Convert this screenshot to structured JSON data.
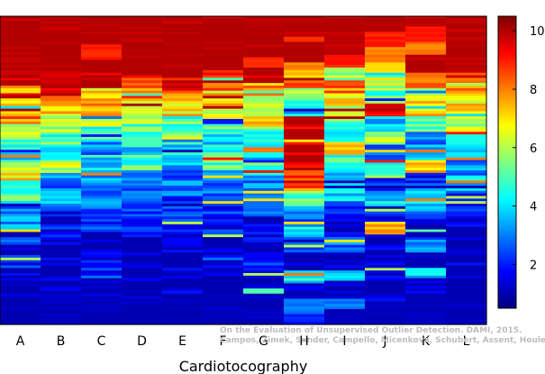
{
  "chart_data": {
    "type": "heatmap",
    "title": "",
    "xlabel": "Cardiotocography",
    "ylabel": "",
    "categories": [
      "A",
      "B",
      "C",
      "D",
      "E",
      "F",
      "G",
      "H",
      "I",
      "J",
      "K",
      "L"
    ],
    "colorbar": {
      "range": [
        0.5,
        10.5
      ],
      "ticks": [
        2,
        4,
        6,
        8,
        10
      ],
      "colormap": [
        "#00007f",
        "#0000ff",
        "#007fff",
        "#00ffff",
        "#7fff7f",
        "#ffff00",
        "#ff7f00",
        "#ff0000",
        "#7f0000"
      ]
    },
    "grid": false,
    "column_profiles": [
      [
        [
          0.0,
          10
        ],
        [
          0.22,
          8
        ],
        [
          0.25,
          10
        ],
        [
          0.27,
          7
        ],
        [
          0.3,
          8
        ],
        [
          0.35,
          6
        ],
        [
          0.4,
          5
        ],
        [
          0.44,
          4
        ],
        [
          0.47,
          6
        ],
        [
          0.51,
          7
        ],
        [
          0.53,
          4
        ],
        [
          0.57,
          5
        ],
        [
          0.6,
          3
        ],
        [
          0.7,
          2
        ],
        [
          0.75,
          1
        ],
        [
          0.78,
          2
        ],
        [
          0.82,
          1
        ],
        [
          1.0,
          1
        ]
      ],
      [
        [
          0.0,
          10
        ],
        [
          0.26,
          8
        ],
        [
          0.29,
          7
        ],
        [
          0.32,
          6
        ],
        [
          0.37,
          5
        ],
        [
          0.42,
          4
        ],
        [
          0.47,
          6
        ],
        [
          0.51,
          3
        ],
        [
          0.58,
          4
        ],
        [
          0.62,
          2
        ],
        [
          0.72,
          1
        ],
        [
          1.0,
          1
        ]
      ],
      [
        [
          0.0,
          10
        ],
        [
          0.09,
          9
        ],
        [
          0.14,
          10
        ],
        [
          0.23,
          7
        ],
        [
          0.28,
          8
        ],
        [
          0.32,
          6
        ],
        [
          0.36,
          5
        ],
        [
          0.4,
          3
        ],
        [
          0.45,
          4
        ],
        [
          0.52,
          3
        ],
        [
          0.63,
          2
        ],
        [
          0.7,
          1
        ],
        [
          0.78,
          2
        ],
        [
          0.85,
          1
        ],
        [
          1.0,
          1
        ]
      ],
      [
        [
          0.0,
          10
        ],
        [
          0.2,
          9
        ],
        [
          0.23,
          8
        ],
        [
          0.27,
          7
        ],
        [
          0.31,
          6
        ],
        [
          0.35,
          5
        ],
        [
          0.4,
          4
        ],
        [
          0.45,
          5
        ],
        [
          0.5,
          3
        ],
        [
          0.6,
          2
        ],
        [
          0.72,
          1
        ],
        [
          1.0,
          1
        ]
      ],
      [
        [
          0.0,
          10
        ],
        [
          0.2,
          9
        ],
        [
          0.24,
          8
        ],
        [
          0.28,
          7
        ],
        [
          0.32,
          5
        ],
        [
          0.38,
          6
        ],
        [
          0.42,
          4
        ],
        [
          0.48,
          3
        ],
        [
          0.58,
          2
        ],
        [
          0.7,
          1
        ],
        [
          1.0,
          1
        ]
      ],
      [
        [
          0.0,
          10
        ],
        [
          0.17,
          9
        ],
        [
          0.2,
          8
        ],
        [
          0.24,
          7
        ],
        [
          0.29,
          6
        ],
        [
          0.33,
          5
        ],
        [
          0.38,
          4
        ],
        [
          0.44,
          5
        ],
        [
          0.5,
          3
        ],
        [
          0.62,
          2
        ],
        [
          0.72,
          1
        ],
        [
          0.78,
          2
        ],
        [
          0.82,
          1
        ],
        [
          1.0,
          1
        ]
      ],
      [
        [
          0.0,
          10
        ],
        [
          0.13,
          9
        ],
        [
          0.16,
          10
        ],
        [
          0.22,
          8
        ],
        [
          0.26,
          6
        ],
        [
          0.32,
          7
        ],
        [
          0.36,
          5
        ],
        [
          0.42,
          4
        ],
        [
          0.47,
          5
        ],
        [
          0.52,
          3
        ],
        [
          0.65,
          2
        ],
        [
          0.75,
          1
        ],
        [
          0.8,
          2
        ],
        [
          0.85,
          1
        ],
        [
          1.0,
          1
        ]
      ],
      [
        [
          0.0,
          10
        ],
        [
          0.06,
          9
        ],
        [
          0.08,
          10
        ],
        [
          0.15,
          8
        ],
        [
          0.17,
          7
        ],
        [
          0.2,
          9
        ],
        [
          0.23,
          6
        ],
        [
          0.27,
          4
        ],
        [
          0.32,
          10
        ],
        [
          0.5,
          9
        ],
        [
          0.54,
          8
        ],
        [
          0.57,
          5
        ],
        [
          0.62,
          3
        ],
        [
          0.68,
          4
        ],
        [
          0.72,
          2
        ],
        [
          0.77,
          1
        ],
        [
          0.83,
          4
        ],
        [
          0.87,
          1
        ],
        [
          0.92,
          3
        ],
        [
          0.97,
          2
        ],
        [
          1.0,
          2
        ]
      ],
      [
        [
          0.0,
          10
        ],
        [
          0.12,
          9
        ],
        [
          0.16,
          6
        ],
        [
          0.2,
          8
        ],
        [
          0.25,
          7
        ],
        [
          0.29,
          6
        ],
        [
          0.33,
          5
        ],
        [
          0.37,
          4
        ],
        [
          0.41,
          8
        ],
        [
          0.45,
          5
        ],
        [
          0.5,
          3
        ],
        [
          0.56,
          4
        ],
        [
          0.6,
          2
        ],
        [
          0.67,
          1
        ],
        [
          0.72,
          3
        ],
        [
          0.77,
          1
        ],
        [
          0.83,
          4
        ],
        [
          0.86,
          1
        ],
        [
          0.92,
          3
        ],
        [
          0.95,
          1
        ],
        [
          1.0,
          1
        ]
      ],
      [
        [
          0.0,
          10
        ],
        [
          0.05,
          9
        ],
        [
          0.1,
          8
        ],
        [
          0.15,
          7
        ],
        [
          0.19,
          6
        ],
        [
          0.24,
          5
        ],
        [
          0.28,
          9
        ],
        [
          0.32,
          4
        ],
        [
          0.37,
          6
        ],
        [
          0.42,
          3
        ],
        [
          0.47,
          5
        ],
        [
          0.52,
          2
        ],
        [
          0.57,
          4
        ],
        [
          0.62,
          2
        ],
        [
          0.67,
          8
        ],
        [
          0.71,
          1
        ],
        [
          0.79,
          2
        ],
        [
          0.84,
          1
        ],
        [
          0.9,
          2
        ],
        [
          0.93,
          1
        ],
        [
          1.0,
          1
        ]
      ],
      [
        [
          0.0,
          10
        ],
        [
          0.03,
          9
        ],
        [
          0.08,
          8
        ],
        [
          0.12,
          10
        ],
        [
          0.18,
          8
        ],
        [
          0.23,
          6
        ],
        [
          0.27,
          7
        ],
        [
          0.32,
          5
        ],
        [
          0.37,
          3
        ],
        [
          0.42,
          4
        ],
        [
          0.47,
          7
        ],
        [
          0.51,
          2
        ],
        [
          0.56,
          4
        ],
        [
          0.61,
          3
        ],
        [
          0.66,
          1
        ],
        [
          0.72,
          3
        ],
        [
          0.77,
          1
        ],
        [
          0.82,
          4
        ],
        [
          0.85,
          1
        ],
        [
          1.0,
          1
        ]
      ],
      [
        [
          0.0,
          10
        ],
        [
          0.18,
          9
        ],
        [
          0.22,
          8
        ],
        [
          0.26,
          7
        ],
        [
          0.32,
          6
        ],
        [
          0.37,
          5
        ],
        [
          0.42,
          4
        ],
        [
          0.47,
          3
        ],
        [
          0.52,
          4
        ],
        [
          0.57,
          2
        ],
        [
          0.65,
          1
        ],
        [
          1.0,
          1
        ]
      ]
    ]
  },
  "watermark": {
    "line1": "On the Evaluation of Unsupervised Outlier Detection. DAMI, 2015.",
    "line2": "Campos, Zimek, Sander, Campello, Micenková, Schubert, Assent, Houle"
  }
}
